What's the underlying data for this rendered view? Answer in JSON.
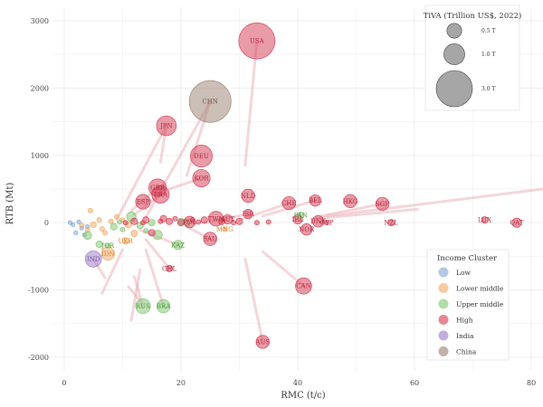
{
  "chart_data": {
    "type": "scatter",
    "xlabel": "RMC (t/c)",
    "ylabel": "RTB (Mt)",
    "xlim": [
      -2,
      82
    ],
    "ylim": [
      -2200,
      3200
    ],
    "x_ticks": [
      0,
      20,
      40,
      60,
      80
    ],
    "y_ticks": [
      -2000,
      -1000,
      0,
      1000,
      2000,
      3000
    ],
    "grid": true,
    "colors": {
      "Low": "#7ea3d0",
      "Lower middle": "#f0a860",
      "Upper middle": "#7fc46e",
      "High": "#d4384f",
      "India": "#9a78c6",
      "China": "#9a7f6f"
    },
    "size_legend": {
      "title": "TiVA (Trillion US$, 2022)",
      "entries": [
        {
          "label": "0.5 T",
          "value": 0.5
        },
        {
          "label": "1.0 T",
          "value": 1.0
        },
        {
          "label": "3.0 T",
          "value": 3.0
        }
      ]
    },
    "color_legend": {
      "title": "Income Cluster",
      "entries": [
        "Low",
        "Lower middle",
        "Upper middle",
        "High",
        "India",
        "China"
      ]
    },
    "labeled_points": [
      {
        "label": "USA",
        "x": 33,
        "y": 2700,
        "tiva": 3.0,
        "group": "High"
      },
      {
        "label": "CHN",
        "x": 25,
        "y": 1800,
        "tiva": 4.0,
        "group": "China"
      },
      {
        "label": "JPN",
        "x": 17.5,
        "y": 1440,
        "tiva": 0.9,
        "group": "High"
      },
      {
        "label": "DEU",
        "x": 23.5,
        "y": 990,
        "tiva": 1.1,
        "group": "High"
      },
      {
        "label": "KOR",
        "x": 23.5,
        "y": 660,
        "tiva": 0.7,
        "group": "High"
      },
      {
        "label": "GBR",
        "x": 16,
        "y": 520,
        "tiva": 0.7,
        "group": "High"
      },
      {
        "label": "FRA",
        "x": 16.5,
        "y": 420,
        "tiva": 0.7,
        "group": "High"
      },
      {
        "label": "ESP",
        "x": 13.5,
        "y": 310,
        "tiva": 0.5,
        "group": "High"
      },
      {
        "label": "NLD",
        "x": 31.5,
        "y": 400,
        "tiva": 0.4,
        "group": "High"
      },
      {
        "label": "CHE",
        "x": 38.5,
        "y": 290,
        "tiva": 0.4,
        "group": "High"
      },
      {
        "label": "BEL",
        "x": 43,
        "y": 330,
        "tiva": 0.3,
        "group": "High"
      },
      {
        "label": "HKG",
        "x": 49,
        "y": 320,
        "tiva": 0.4,
        "group": "High"
      },
      {
        "label": "SGP",
        "x": 54.5,
        "y": 280,
        "tiva": 0.4,
        "group": "High"
      },
      {
        "label": "ISR",
        "x": 31.5,
        "y": 130,
        "tiva": 0.2,
        "group": "High"
      },
      {
        "label": "TWN",
        "x": 26,
        "y": 60,
        "tiva": 0.5,
        "group": "High"
      },
      {
        "label": "AUT",
        "x": 28,
        "y": 50,
        "tiva": 0.2,
        "group": "High"
      },
      {
        "label": "POL",
        "x": 21.5,
        "y": 10,
        "tiva": 0.3,
        "group": "High"
      },
      {
        "label": "IRL",
        "x": 40,
        "y": 50,
        "tiva": 0.2,
        "group": "High"
      },
      {
        "label": "PAN",
        "x": 40.5,
        "y": 110,
        "tiva": 0.1,
        "group": "Upper middle"
      },
      {
        "label": "CAN",
        "x": 41,
        "y": -940,
        "tiva": 0.6,
        "group": "High"
      },
      {
        "label": "AUS",
        "x": 34,
        "y": -1770,
        "tiva": 0.4,
        "group": "High"
      },
      {
        "label": "SAU",
        "x": 25,
        "y": -240,
        "tiva": 0.4,
        "group": "High"
      },
      {
        "label": "CHL",
        "x": 18,
        "y": -680,
        "tiva": 0.1,
        "group": "High"
      },
      {
        "label": "RUS",
        "x": 13.5,
        "y": -1240,
        "tiva": 0.5,
        "group": "Upper middle"
      },
      {
        "label": "BRA",
        "x": 17,
        "y": -1240,
        "tiva": 0.4,
        "group": "Upper middle"
      },
      {
        "label": "IND",
        "x": 5,
        "y": -540,
        "tiva": 0.6,
        "group": "India"
      },
      {
        "label": "IDN",
        "x": 7.5,
        "y": -460,
        "tiva": 0.4,
        "group": "Lower middle"
      },
      {
        "label": "MNG",
        "x": 27.5,
        "y": -95,
        "tiva": 0.05,
        "group": "Lower middle"
      },
      {
        "label": "UKR",
        "x": 10.5,
        "y": -270,
        "tiva": 0.1,
        "group": "Lower middle"
      },
      {
        "label": "KAZ",
        "x": 19.5,
        "y": -330,
        "tiva": 0.2,
        "group": "Upper middle"
      },
      {
        "label": "JOR",
        "x": 7.5,
        "y": -340,
        "tiva": 0.05,
        "group": "Upper middle"
      },
      {
        "label": "NOR",
        "x": 41.5,
        "y": -100,
        "tiva": 0.3,
        "group": "High"
      },
      {
        "label": "DNK",
        "x": 43.5,
        "y": 20,
        "tiva": 0.3,
        "group": "High"
      },
      {
        "label": "CYP",
        "x": 45,
        "y": 0,
        "tiva": 0.05,
        "group": "High"
      },
      {
        "label": "NZL",
        "x": 56,
        "y": 0,
        "tiva": 0.1,
        "group": "High"
      },
      {
        "label": "LUX",
        "x": 72,
        "y": 40,
        "tiva": 0.1,
        "group": "High"
      },
      {
        "label": "QAT",
        "x": 77.5,
        "y": 0,
        "tiva": 0.2,
        "group": "High"
      }
    ],
    "background_points": [
      {
        "x": 2,
        "y": -150,
        "tiva": 0.02,
        "group": "Low"
      },
      {
        "x": 3,
        "y": -80,
        "tiva": 0.02,
        "group": "Low"
      },
      {
        "x": 1.5,
        "y": -30,
        "tiva": 0.02,
        "group": "Low"
      },
      {
        "x": 2.5,
        "y": 10,
        "tiva": 0.02,
        "group": "Low"
      },
      {
        "x": 4,
        "y": -60,
        "tiva": 0.02,
        "group": "Low"
      },
      {
        "x": 3.5,
        "y": -180,
        "tiva": 0.02,
        "group": "Low"
      },
      {
        "x": 1,
        "y": 0,
        "tiva": 0.02,
        "group": "Low"
      },
      {
        "x": 4.5,
        "y": 180,
        "tiva": 0.05,
        "group": "Lower middle"
      },
      {
        "x": 5,
        "y": -30,
        "tiva": 0.08,
        "group": "Lower middle"
      },
      {
        "x": 6,
        "y": 40,
        "tiva": 0.05,
        "group": "Lower middle"
      },
      {
        "x": 4,
        "y": -110,
        "tiva": 0.05,
        "group": "Lower middle"
      },
      {
        "x": 8,
        "y": 20,
        "tiva": 0.05,
        "group": "Lower middle"
      },
      {
        "x": 9,
        "y": 90,
        "tiva": 0.05,
        "group": "Lower middle"
      },
      {
        "x": 7,
        "y": -150,
        "tiva": 0.05,
        "group": "Lower middle"
      },
      {
        "x": 11,
        "y": -30,
        "tiva": 0.1,
        "group": "Lower middle"
      },
      {
        "x": 12,
        "y": -160,
        "tiva": 0.1,
        "group": "Lower middle"
      },
      {
        "x": 6.5,
        "y": -90,
        "tiva": 0.05,
        "group": "Lower middle"
      },
      {
        "x": 3,
        "y": -40,
        "tiva": 0.05,
        "group": "Lower middle"
      },
      {
        "x": 10,
        "y": 40,
        "tiva": 0.05,
        "group": "Lower middle"
      },
      {
        "x": 4,
        "y": -190,
        "tiva": 0.15,
        "group": "Upper middle"
      },
      {
        "x": 6,
        "y": -320,
        "tiva": 0.1,
        "group": "Upper middle"
      },
      {
        "x": 8.5,
        "y": -60,
        "tiva": 0.1,
        "group": "Upper middle"
      },
      {
        "x": 11.5,
        "y": 90,
        "tiva": 0.2,
        "group": "Upper middle"
      },
      {
        "x": 13,
        "y": -40,
        "tiva": 0.1,
        "group": "Upper middle"
      },
      {
        "x": 15,
        "y": 0,
        "tiva": 0.1,
        "group": "Upper middle"
      },
      {
        "x": 16,
        "y": -180,
        "tiva": 0.2,
        "group": "Upper middle"
      },
      {
        "x": 20,
        "y": 20,
        "tiva": 0.1,
        "group": "Upper middle"
      },
      {
        "x": 10,
        "y": -100,
        "tiva": 0.05,
        "group": "Upper middle"
      },
      {
        "x": 14,
        "y": -120,
        "tiva": 0.05,
        "group": "Upper middle"
      },
      {
        "x": 21,
        "y": 0,
        "tiva": 0.1,
        "group": "Upper middle"
      },
      {
        "x": 9.5,
        "y": 10,
        "tiva": 0.05,
        "group": "Upper middle"
      },
      {
        "x": 12,
        "y": 20,
        "tiva": 0.1,
        "group": "High"
      },
      {
        "x": 14,
        "y": 40,
        "tiva": 0.1,
        "group": "High"
      },
      {
        "x": 17,
        "y": 60,
        "tiva": 0.1,
        "group": "High"
      },
      {
        "x": 18,
        "y": 20,
        "tiva": 0.1,
        "group": "High"
      },
      {
        "x": 19,
        "y": 60,
        "tiva": 0.05,
        "group": "High"
      },
      {
        "x": 20,
        "y": 0,
        "tiva": 0.1,
        "group": "High"
      },
      {
        "x": 22,
        "y": 40,
        "tiva": 0.05,
        "group": "High"
      },
      {
        "x": 23,
        "y": 10,
        "tiva": 0.05,
        "group": "High"
      },
      {
        "x": 24,
        "y": 40,
        "tiva": 0.1,
        "group": "High"
      },
      {
        "x": 27,
        "y": 20,
        "tiva": 0.1,
        "group": "High"
      },
      {
        "x": 29,
        "y": 0,
        "tiva": 0.05,
        "group": "High"
      },
      {
        "x": 30,
        "y": 20,
        "tiva": 0.1,
        "group": "High"
      },
      {
        "x": 33,
        "y": 0,
        "tiva": 0.05,
        "group": "High"
      },
      {
        "x": 35,
        "y": 10,
        "tiva": 0.05,
        "group": "High"
      },
      {
        "x": 15,
        "y": -150,
        "tiva": 0.1,
        "group": "High"
      },
      {
        "x": 13.5,
        "y": 0,
        "tiva": 0.05,
        "group": "High"
      },
      {
        "x": 16.5,
        "y": 20,
        "tiva": 0.05,
        "group": "High"
      },
      {
        "x": 10.5,
        "y": 0,
        "tiva": 0.05,
        "group": "High"
      }
    ],
    "connectors": [
      {
        "x1": 33,
        "y1": 2700,
        "x2": 31,
        "y2": 850
      },
      {
        "x1": 25,
        "y1": 1800,
        "x2": 21,
        "y2": 700
      },
      {
        "x1": 17.5,
        "y1": 1440,
        "x2": 16.5,
        "y2": 900
      },
      {
        "x1": 23.5,
        "y1": 660,
        "x2": 18,
        "y2": 500
      },
      {
        "x1": 16,
        "y1": 520,
        "x2": 11.5,
        "y2": 180
      },
      {
        "x1": 16.5,
        "y1": 420,
        "x2": 12,
        "y2": 120
      },
      {
        "x1": 17.5,
        "y1": 1440,
        "x2": 9,
        "y2": 50
      },
      {
        "x1": 25,
        "y1": 1800,
        "x2": 14,
        "y2": 80
      },
      {
        "x1": 41,
        "y1": -940,
        "x2": 34,
        "y2": -430
      },
      {
        "x1": 34,
        "y1": -1770,
        "x2": 31,
        "y2": -540
      },
      {
        "x1": 31.5,
        "y1": 130,
        "x2": 24,
        "y2": 0
      },
      {
        "x1": 38.5,
        "y1": 290,
        "x2": 30,
        "y2": 40
      },
      {
        "x1": 54.5,
        "y1": 280,
        "x2": 44,
        "y2": 100
      },
      {
        "x1": 82,
        "y1": 500,
        "x2": 45,
        "y2": 100
      },
      {
        "x1": 60.5,
        "y1": 200,
        "x2": 43,
        "y2": 60
      },
      {
        "x1": 43,
        "y1": 330,
        "x2": 34,
        "y2": 100
      },
      {
        "x1": 13.5,
        "y1": -1240,
        "x2": 12,
        "y2": -800
      },
      {
        "x1": 17,
        "y1": -1240,
        "x2": 14,
        "y2": -400
      },
      {
        "x1": 18,
        "y1": -680,
        "x2": 14,
        "y2": -250
      },
      {
        "x1": 5,
        "y1": -540,
        "x2": 7,
        "y2": -820
      },
      {
        "x1": 6.5,
        "y1": -1050,
        "x2": 10,
        "y2": -400
      },
      {
        "x1": 11.5,
        "y1": -1450,
        "x2": 13,
        "y2": -700
      },
      {
        "x1": 19.5,
        "y1": -330,
        "x2": 13,
        "y2": -110
      },
      {
        "x1": 25,
        "y1": -240,
        "x2": 21,
        "y2": -60
      },
      {
        "x1": 11,
        "y1": -950,
        "x2": 13,
        "y2": -1160
      }
    ]
  }
}
